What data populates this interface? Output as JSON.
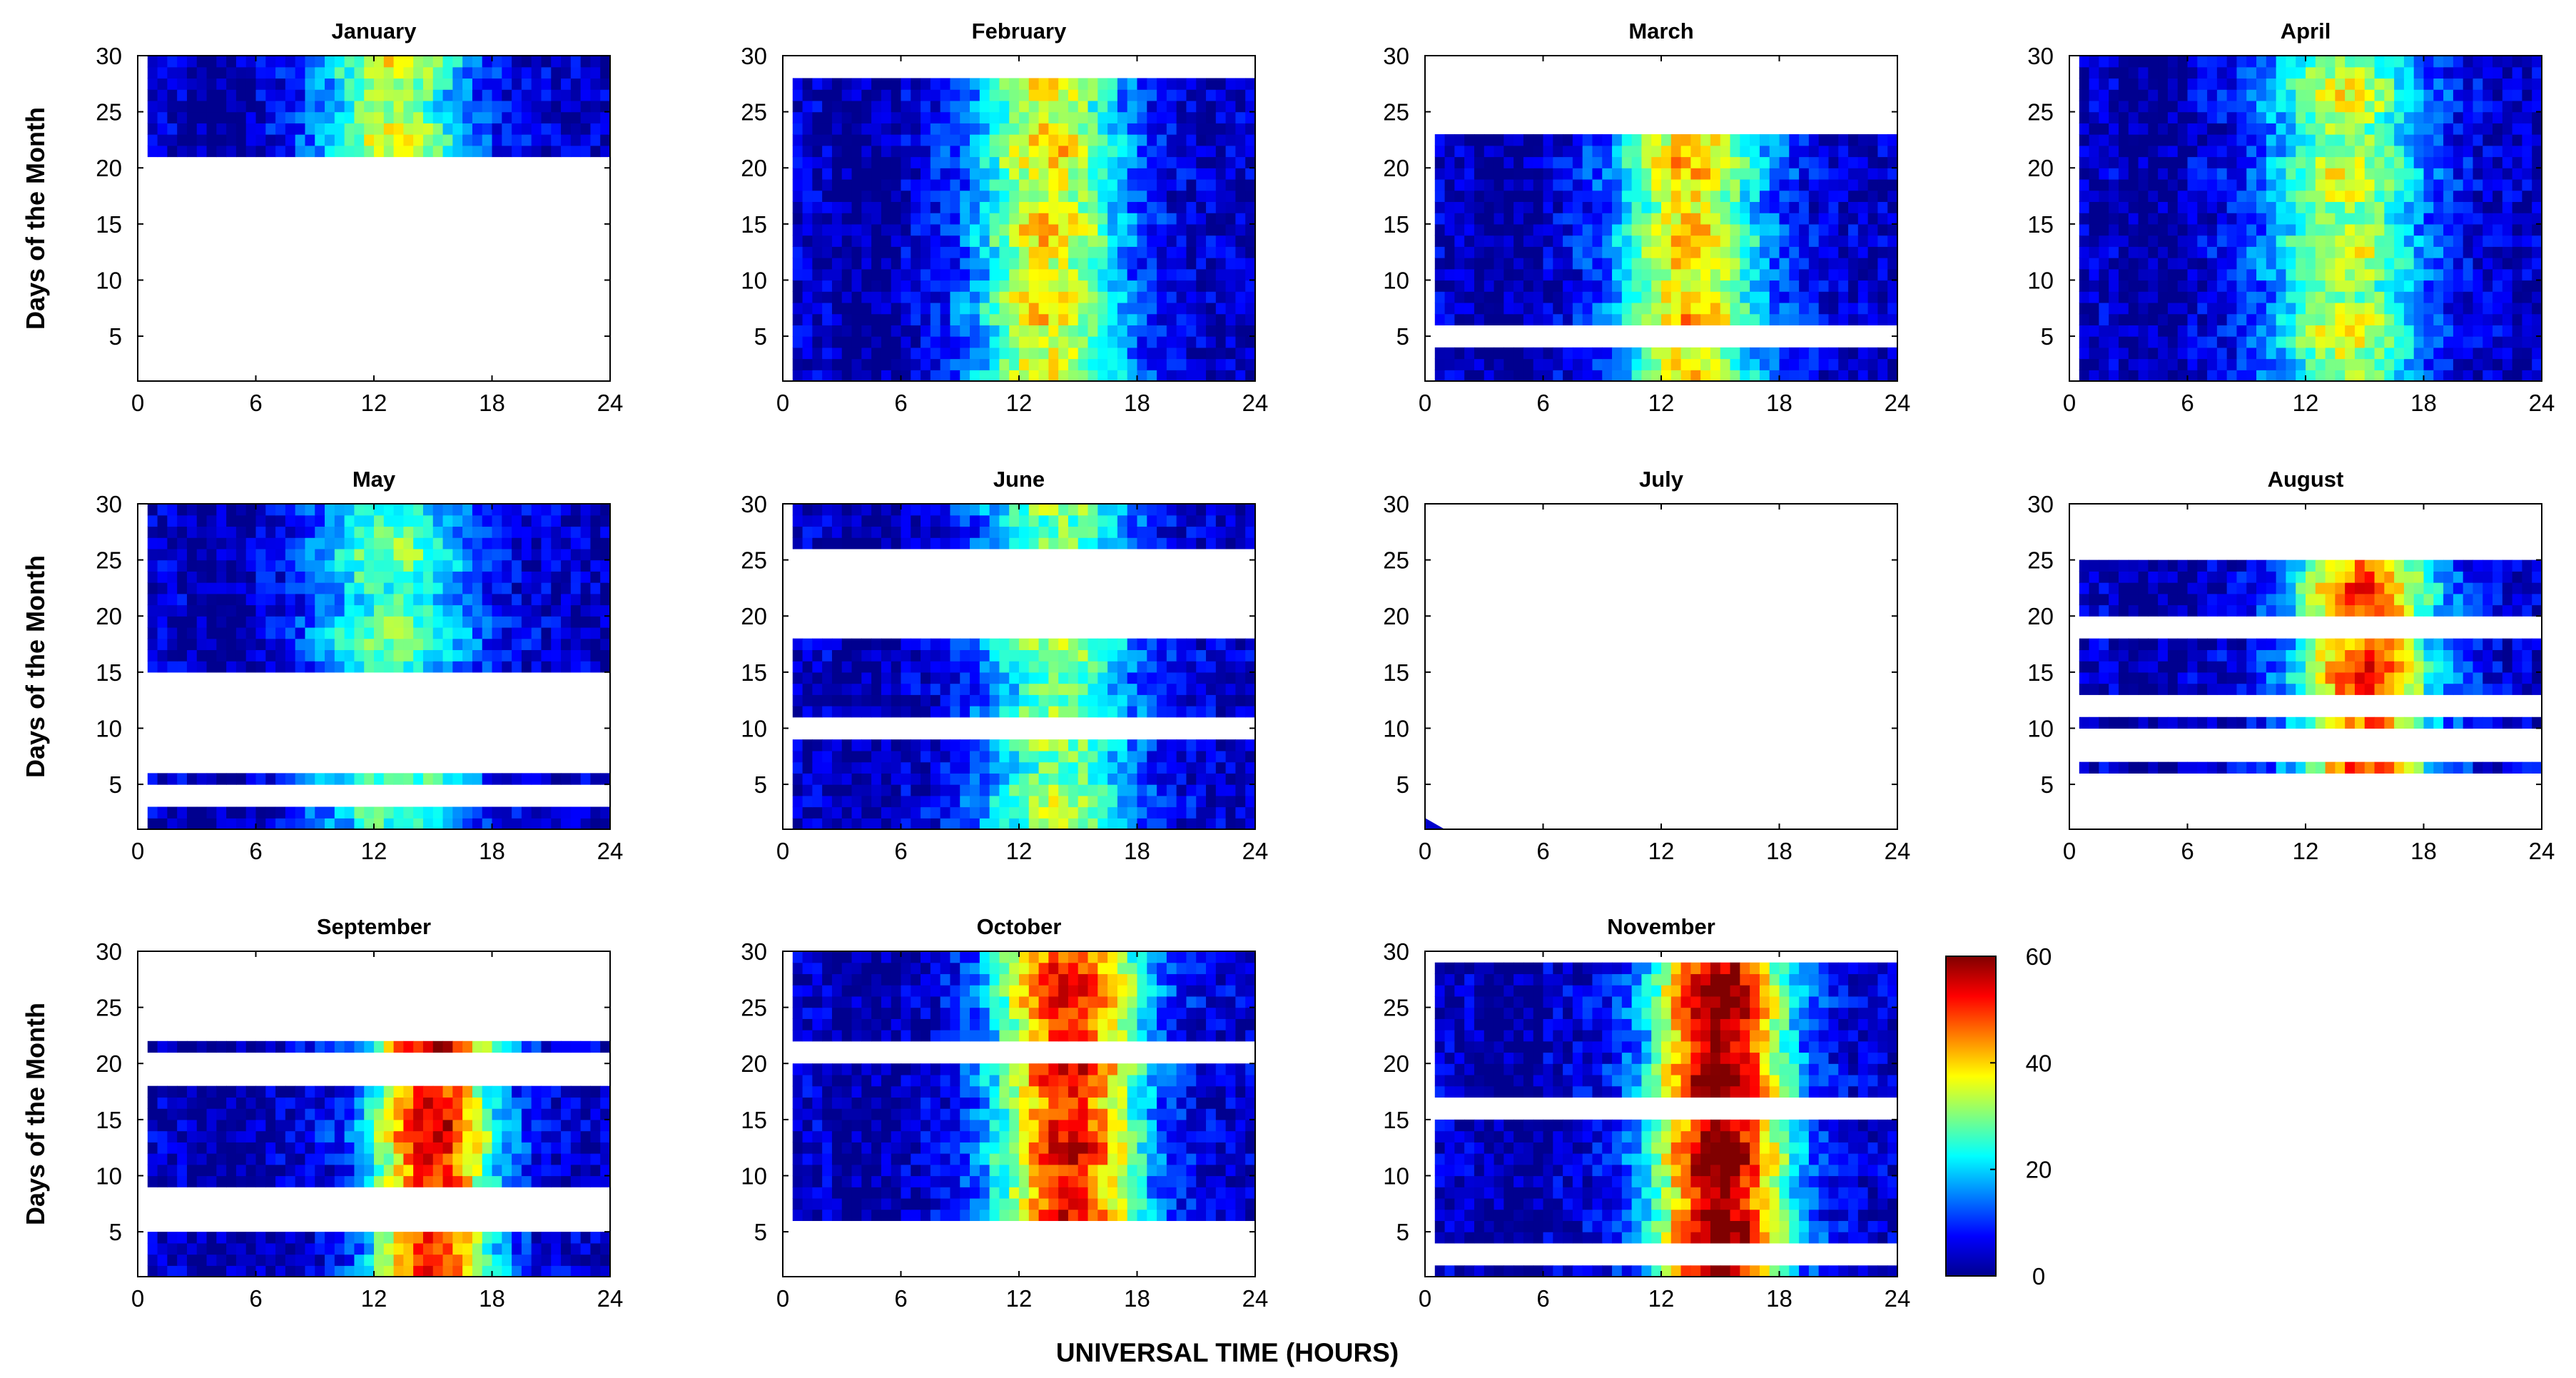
{
  "chart_data": {
    "type": "heatmap",
    "x_label": "UNIVERSAL TIME (HOURS)",
    "y_label": "Days of the Month",
    "x_ticks": [
      0,
      6,
      12,
      18,
      24
    ],
    "y_ticks": [
      5,
      10,
      15,
      20,
      25,
      30
    ],
    "x_tick_labels": [
      "0",
      "6",
      "12",
      "18",
      "24"
    ],
    "y_tick_labels": [
      "5",
      "10",
      "15",
      "20",
      "25",
      "30"
    ],
    "xlim": [
      0,
      24
    ],
    "ylim": [
      1,
      30
    ],
    "colorbar": {
      "min": 0,
      "max": 60,
      "ticks": [
        0,
        20,
        40,
        60
      ],
      "tick_labels": [
        "0",
        "20",
        "40",
        "60"
      ],
      "colormap": "jet"
    },
    "panels": [
      {
        "title": "January",
        "x_range": [
          0.5,
          24
        ],
        "bands": [
          [
            21,
            30
          ]
        ],
        "peak": 30,
        "peak_hour": 13,
        "peak_width": 3.8
      },
      {
        "title": "February",
        "x_range": [
          0.5,
          24
        ],
        "bands": [
          [
            1,
            28
          ]
        ],
        "peak": 34,
        "peak_hour": 13.5,
        "peak_width": 3.8
      },
      {
        "title": "March",
        "x_range": [
          0.5,
          24
        ],
        "bands": [
          [
            1,
            4
          ],
          [
            6,
            23
          ]
        ],
        "peak": 36,
        "peak_hour": 13.5,
        "peak_width": 3.8
      },
      {
        "title": "April",
        "x_range": [
          0.5,
          24
        ],
        "bands": [
          [
            1,
            30
          ]
        ],
        "peak": 30,
        "peak_hour": 14,
        "peak_width": 4.0
      },
      {
        "title": "May",
        "x_range": [
          0.5,
          24
        ],
        "bands": [
          [
            1,
            3
          ],
          [
            5,
            6
          ],
          [
            15,
            30
          ]
        ],
        "peak": 24,
        "peak_hour": 13,
        "peak_width": 4.0
      },
      {
        "title": "June",
        "x_range": [
          0.5,
          24
        ],
        "bands": [
          [
            1,
            9
          ],
          [
            11,
            18
          ],
          [
            26,
            30
          ]
        ],
        "peak": 27,
        "peak_hour": 14,
        "peak_width": 4.0
      },
      {
        "title": "July",
        "x_range": [
          0.5,
          24
        ],
        "bands": [],
        "peak": 0,
        "peak_hour": 12,
        "peak_width": 4.0
      },
      {
        "title": "August",
        "x_range": [
          0.5,
          24
        ],
        "bands": [
          [
            6,
            7
          ],
          [
            10,
            11
          ],
          [
            13,
            18
          ],
          [
            20,
            25
          ]
        ],
        "peak": 44,
        "peak_hour": 15,
        "peak_width": 3.6
      },
      {
        "title": "September",
        "x_range": [
          0.5,
          24
        ],
        "bands": [
          [
            1,
            5
          ],
          [
            9,
            18
          ],
          [
            21,
            22
          ]
        ],
        "peak": 50,
        "peak_hour": 15,
        "peak_width": 3.2
      },
      {
        "title": "October",
        "x_range": [
          0.5,
          24
        ],
        "bands": [
          [
            6,
            20
          ],
          [
            22,
            30
          ]
        ],
        "peak": 48,
        "peak_hour": 14.5,
        "peak_width": 3.8
      },
      {
        "title": "November",
        "x_range": [
          0.5,
          24
        ],
        "bands": [
          [
            1,
            2
          ],
          [
            4,
            15
          ],
          [
            17,
            29
          ]
        ],
        "peak": 56,
        "peak_hour": 15,
        "peak_width": 3.4
      }
    ]
  }
}
